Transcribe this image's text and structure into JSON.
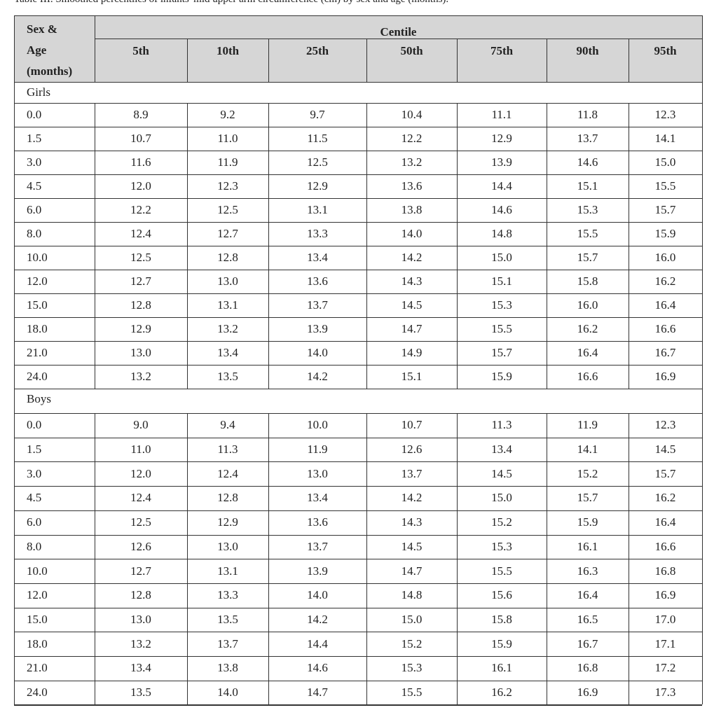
{
  "caption": "Table III. Smoothed percentiles of infants' mid upper arm circumference (cm) by sex and age (months).",
  "header": {
    "row_label": [
      "Sex &",
      "Age",
      "(months)"
    ],
    "group": "Centile",
    "columns": [
      "5th",
      "10th",
      "25th",
      "50th",
      "75th",
      "90th",
      "95th"
    ]
  },
  "sections": [
    {
      "label": "Girls",
      "rows": [
        [
          "0.0",
          "8.9",
          "9.2",
          "9.7",
          "10.4",
          "11.1",
          "11.8",
          "12.3"
        ],
        [
          "1.5",
          "10.7",
          "11.0",
          "11.5",
          "12.2",
          "12.9",
          "13.7",
          "14.1"
        ],
        [
          "3.0",
          "11.6",
          "11.9",
          "12.5",
          "13.2",
          "13.9",
          "14.6",
          "15.0"
        ],
        [
          "4.5",
          "12.0",
          "12.3",
          "12.9",
          "13.6",
          "14.4",
          "15.1",
          "15.5"
        ],
        [
          "6.0",
          "12.2",
          "12.5",
          "13.1",
          "13.8",
          "14.6",
          "15.3",
          "15.7"
        ],
        [
          "8.0",
          "12.4",
          "12.7",
          "13.3",
          "14.0",
          "14.8",
          "15.5",
          "15.9"
        ],
        [
          "10.0",
          "12.5",
          "12.8",
          "13.4",
          "14.2",
          "15.0",
          "15.7",
          "16.0"
        ],
        [
          "12.0",
          "12.7",
          "13.0",
          "13.6",
          "14.3",
          "15.1",
          "15.8",
          "16.2"
        ],
        [
          "15.0",
          "12.8",
          "13.1",
          "13.7",
          "14.5",
          "15.3",
          "16.0",
          "16.4"
        ],
        [
          "18.0",
          "12.9",
          "13.2",
          "13.9",
          "14.7",
          "15.5",
          "16.2",
          "16.6"
        ],
        [
          "21.0",
          "13.0",
          "13.4",
          "14.0",
          "14.9",
          "15.7",
          "16.4",
          "16.7"
        ],
        [
          "24.0",
          "13.2",
          "13.5",
          "14.2",
          "15.1",
          "15.9",
          "16.6",
          "16.9"
        ]
      ]
    },
    {
      "label": "Boys",
      "rows": [
        [
          "0.0",
          "9.0",
          "9.4",
          "10.0",
          "10.7",
          "11.3",
          "11.9",
          "12.3"
        ],
        [
          "1.5",
          "11.0",
          "11.3",
          "11.9",
          "12.6",
          "13.4",
          "14.1",
          "14.5"
        ],
        [
          "3.0",
          "12.0",
          "12.4",
          "13.0",
          "13.7",
          "14.5",
          "15.2",
          "15.7"
        ],
        [
          "4.5",
          "12.4",
          "12.8",
          "13.4",
          "14.2",
          "15.0",
          "15.7",
          "16.2"
        ],
        [
          "6.0",
          "12.5",
          "12.9",
          "13.6",
          "14.3",
          "15.2",
          "15.9",
          "16.4"
        ],
        [
          "8.0",
          "12.6",
          "13.0",
          "13.7",
          "14.5",
          "15.3",
          "16.1",
          "16.6"
        ],
        [
          "10.0",
          "12.7",
          "13.1",
          "13.9",
          "14.7",
          "15.5",
          "16.3",
          "16.8"
        ],
        [
          "12.0",
          "12.8",
          "13.3",
          "14.0",
          "14.8",
          "15.6",
          "16.4",
          "16.9"
        ],
        [
          "15.0",
          "13.0",
          "13.5",
          "14.2",
          "15.0",
          "15.8",
          "16.5",
          "17.0"
        ],
        [
          "18.0",
          "13.2",
          "13.7",
          "14.4",
          "15.2",
          "15.9",
          "16.7",
          "17.1"
        ],
        [
          "21.0",
          "13.4",
          "13.8",
          "14.6",
          "15.3",
          "16.1",
          "16.8",
          "17.2"
        ],
        [
          "24.0",
          "13.5",
          "14.0",
          "14.7",
          "15.5",
          "16.2",
          "16.9",
          "17.3"
        ]
      ]
    }
  ]
}
